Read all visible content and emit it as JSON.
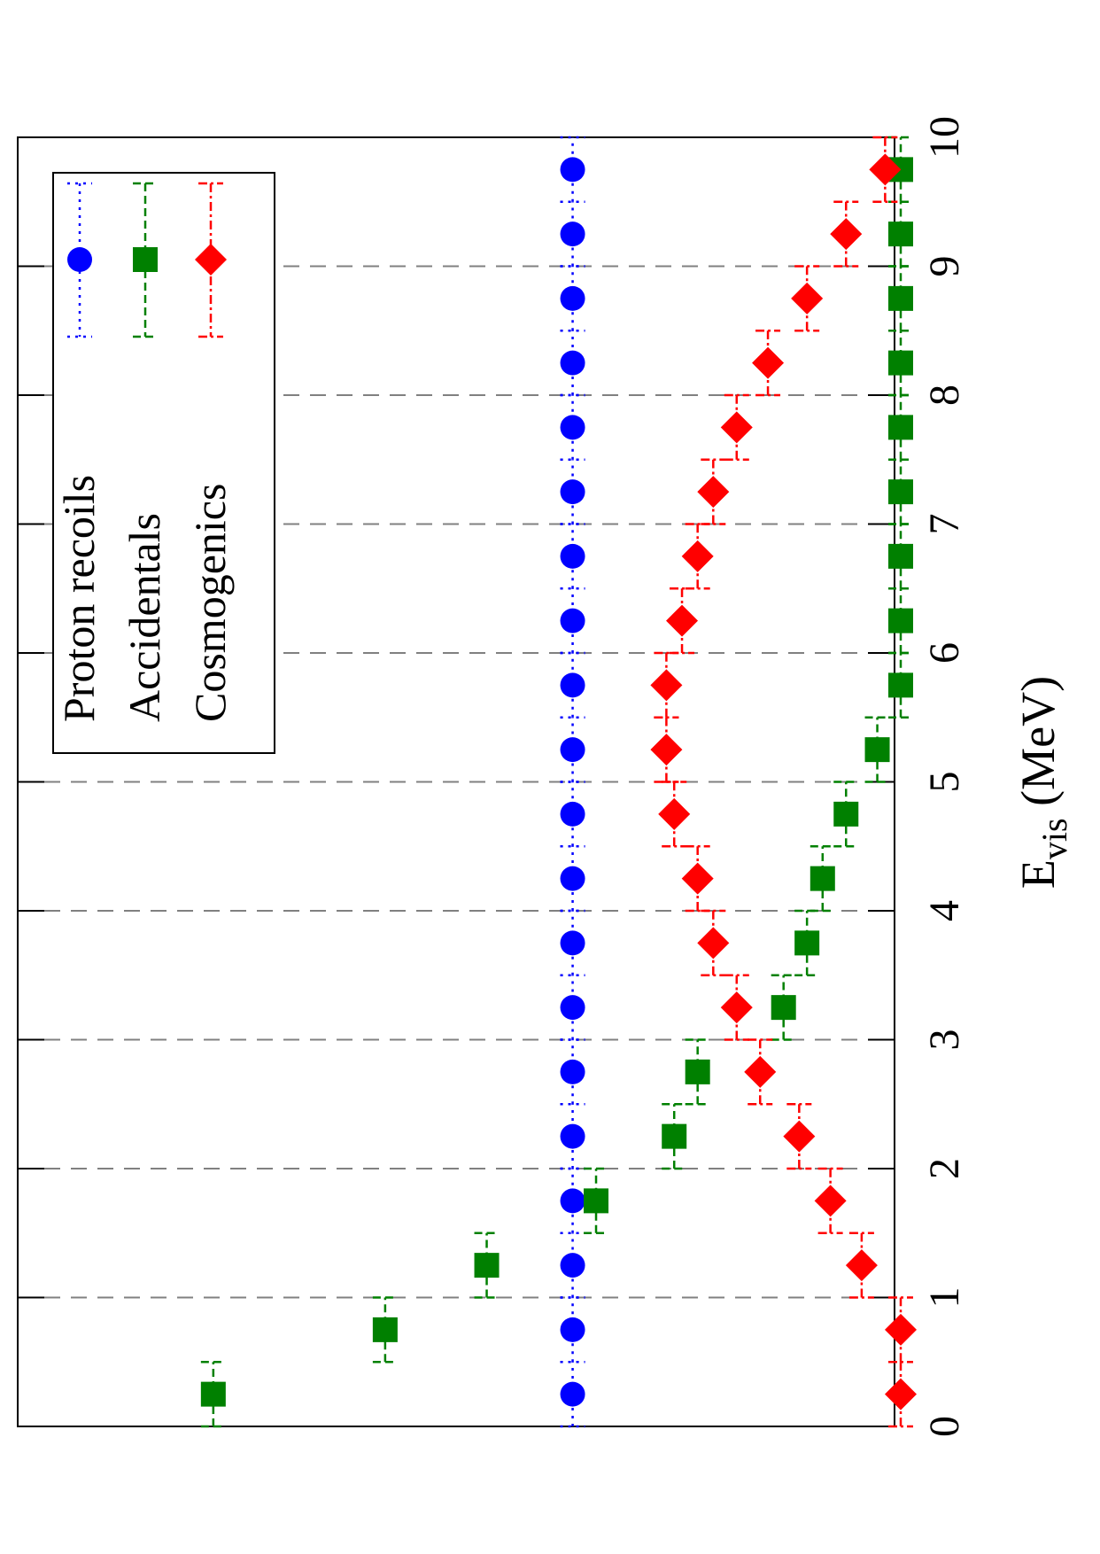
{
  "chart_data": {
    "type": "scatter",
    "xlabel": "E",
    "xlabel_sub": "vis",
    "xlabel_unit": " (MeV)",
    "xlim": [
      0,
      10
    ],
    "ylim": [
      0,
      1
    ],
    "grid": "dashed at integer x",
    "x_ticks": [
      0,
      1,
      2,
      3,
      4,
      5,
      6,
      7,
      8,
      9,
      10
    ],
    "x_tick_labels": [
      "0",
      "1",
      "2",
      "3",
      "4",
      "5",
      "6",
      "7",
      "8",
      "9",
      "10"
    ],
    "legend_placement": "top-left",
    "bin_centers": [
      0.25,
      0.75,
      1.25,
      1.75,
      2.25,
      2.75,
      3.25,
      3.75,
      4.25,
      4.75,
      5.25,
      5.75,
      6.25,
      6.75,
      7.25,
      7.75,
      8.25,
      8.75,
      9.25,
      9.75
    ],
    "series": [
      {
        "name": "Proton recoils",
        "color": "#0000ff",
        "marker": "circle",
        "line": "dotted",
        "values": [
          0.42,
          0.42,
          0.42,
          0.42,
          0.42,
          0.42,
          0.42,
          0.42,
          0.42,
          0.42,
          0.42,
          0.42,
          0.42,
          0.42,
          0.42,
          0.42,
          0.42,
          0.42,
          0.42,
          0.42
        ],
        "errors": [
          0.0,
          0.0,
          0.0,
          0.0,
          0.0,
          0.0,
          0.0,
          0.0,
          0.0,
          0.0,
          0.0,
          0.0,
          0.0,
          0.0,
          0.0,
          0.0,
          0.0,
          0.0,
          0.0,
          0.0
        ]
      },
      {
        "name": "Accidentals",
        "color": "#008000",
        "marker": "square",
        "line": "dashed",
        "values": [
          0.88,
          0.66,
          0.53,
          0.39,
          0.29,
          0.26,
          0.15,
          0.12,
          0.1,
          0.07,
          0.03,
          0.0,
          0.0,
          0.0,
          0.0,
          0.0,
          0.0,
          0.0,
          0.0,
          0.0
        ],
        "errors": [
          0.01,
          0.01,
          0.01,
          0.01,
          0.01,
          0.01,
          0.01,
          0.01,
          0.01,
          0.01,
          0.01,
          0.01,
          0.01,
          0.01,
          0.01,
          0.01,
          0.01,
          0.01,
          0.01,
          0.01
        ]
      },
      {
        "name": "Cosmogenics",
        "color": "#ff0000",
        "marker": "diamond",
        "line": "dashdot",
        "values": [
          0.0,
          0.0,
          0.05,
          0.09,
          0.13,
          0.18,
          0.21,
          0.24,
          0.26,
          0.29,
          0.3,
          0.3,
          0.28,
          0.26,
          0.24,
          0.21,
          0.17,
          0.12,
          0.07,
          0.02
        ],
        "errors": [
          0.01,
          0.01,
          0.01,
          0.01,
          0.01,
          0.01,
          0.01,
          0.01,
          0.01,
          0.01,
          0.01,
          0.01,
          0.01,
          0.01,
          0.01,
          0.01,
          0.01,
          0.01,
          0.01,
          0.01
        ]
      }
    ]
  }
}
